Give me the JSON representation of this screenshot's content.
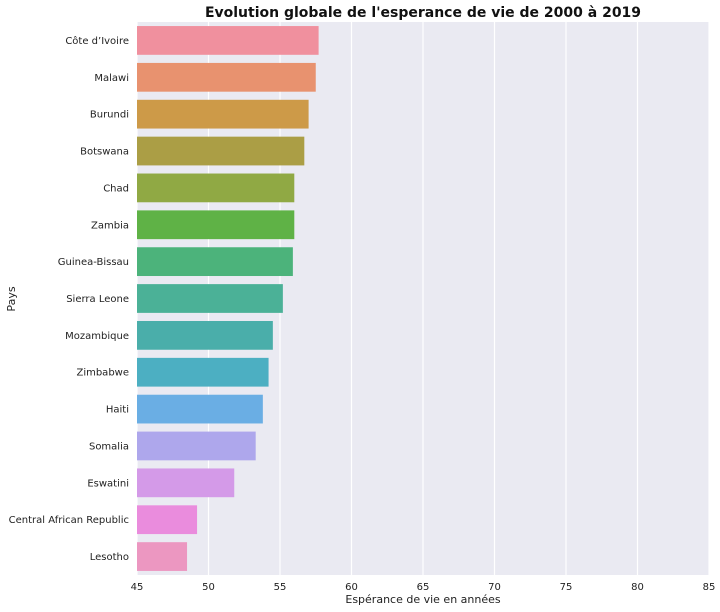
{
  "chart_data": {
    "type": "bar",
    "orientation": "horizontal",
    "title": "Evolution globale de l'esperance de vie de 2000 à 2019",
    "xlabel": "Espérance de vie en années",
    "ylabel": "Pays",
    "xlim": [
      45,
      85
    ],
    "xticks": [
      45,
      50,
      55,
      60,
      65,
      70,
      75,
      80,
      85
    ],
    "grid": true,
    "categories": [
      "Côte d’Ivoire",
      "Malawi",
      "Burundi",
      "Botswana",
      "Chad",
      "Zambia",
      "Guinea-Bissau",
      "Sierra Leone",
      "Mozambique",
      "Zimbabwe",
      "Haiti",
      "Somalia",
      "Eswatini",
      "Central African Republic",
      "Lesotho"
    ],
    "values": [
      57.7,
      57.5,
      57.0,
      56.7,
      56.0,
      56.0,
      55.9,
      55.2,
      54.5,
      54.2,
      53.8,
      53.3,
      51.8,
      49.2,
      48.5
    ],
    "colors": [
      "#f0909e",
      "#e8926f",
      "#cd9a48",
      "#ab9e45",
      "#90a944",
      "#5fb246",
      "#4cb37b",
      "#4bb197",
      "#4aaeaa",
      "#4cafc2",
      "#6aaee4",
      "#aea7ec",
      "#d49ae8",
      "#ea8cdd",
      "#ec97c1"
    ]
  }
}
